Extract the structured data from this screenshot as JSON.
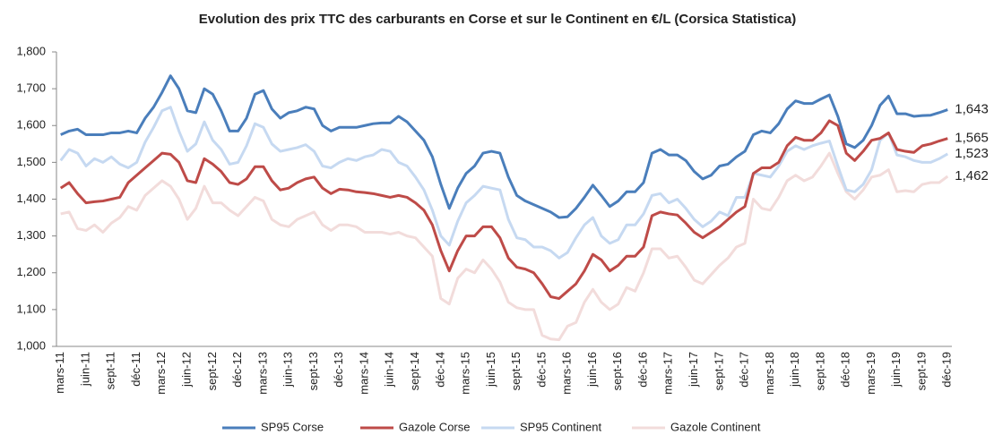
{
  "chart_data": {
    "type": "line",
    "title": "Evolution des prix TTC des carburants en Corse et sur le Continent en €/L (Corsica Statistica)",
    "categories": [
      "mars-11",
      null,
      null,
      "juin-11",
      null,
      null,
      "sept-11",
      null,
      null,
      "déc-11",
      null,
      null,
      "mars-12",
      null,
      null,
      "juin-12",
      null,
      null,
      "sept-12",
      null,
      null,
      "déc-12",
      null,
      null,
      "mars-13",
      null,
      null,
      "juin-13",
      null,
      null,
      "sept-13",
      null,
      null,
      "déc-13",
      null,
      null,
      "mars-14",
      null,
      null,
      "juin-14",
      null,
      null,
      "sept-14",
      null,
      null,
      "déc-14",
      null,
      null,
      "mars-15",
      null,
      null,
      "juin-15",
      null,
      null,
      "sept-15",
      null,
      null,
      "déc-15",
      null,
      null,
      "mars-16",
      null,
      null,
      "juin-16",
      null,
      null,
      "sept-16",
      null,
      null,
      "déc-16",
      null,
      null,
      "mars-17",
      null,
      null,
      "juin-17",
      null,
      null,
      "sept-17",
      null,
      null,
      "déc-17",
      null,
      null,
      "mars-18",
      null,
      null,
      "juin-18",
      null,
      null,
      "sept-18",
      null,
      null,
      "déc-18",
      null,
      null,
      "mars-19",
      null,
      null,
      "juin-19",
      null,
      null,
      "sept-19",
      null,
      null,
      "déc-19"
    ],
    "series": [
      {
        "name": "SP95 Corse",
        "color": "#4a7ebb",
        "values": [
          1.575,
          1.585,
          1.59,
          1.575,
          1.575,
          1.575,
          1.58,
          1.58,
          1.585,
          1.58,
          1.62,
          1.65,
          1.69,
          1.735,
          1.7,
          1.64,
          1.635,
          1.7,
          1.685,
          1.64,
          1.585,
          1.585,
          1.62,
          1.685,
          1.695,
          1.645,
          1.62,
          1.635,
          1.64,
          1.65,
          1.645,
          1.6,
          1.585,
          1.595,
          1.595,
          1.595,
          1.6,
          1.605,
          1.607,
          1.607,
          1.625,
          1.61,
          1.585,
          1.56,
          1.515,
          1.44,
          1.375,
          1.43,
          1.47,
          1.49,
          1.525,
          1.53,
          1.525,
          1.46,
          1.41,
          1.395,
          1.385,
          1.375,
          1.365,
          1.35,
          1.352,
          1.375,
          1.405,
          1.438,
          1.41,
          1.38,
          1.395,
          1.42,
          1.42,
          1.445,
          1.525,
          1.535,
          1.52,
          1.52,
          1.505,
          1.475,
          1.455,
          1.465,
          1.49,
          1.495,
          1.515,
          1.53,
          1.575,
          1.585,
          1.58,
          1.605,
          1.645,
          1.667,
          1.66,
          1.66,
          1.672,
          1.683,
          1.625,
          1.55,
          1.54,
          1.56,
          1.6,
          1.655,
          1.68,
          1.632,
          1.632,
          1.625,
          1.627,
          1.628,
          1.635,
          1.643
        ],
        "value_labels": {
          "105": "1,643"
        }
      },
      {
        "name": "Gazole Corse",
        "color": "#be4b48",
        "values": [
          1.43,
          1.445,
          1.415,
          1.39,
          1.393,
          1.395,
          1.4,
          1.405,
          1.445,
          1.465,
          1.485,
          1.505,
          1.525,
          1.522,
          1.5,
          1.45,
          1.445,
          1.51,
          1.495,
          1.475,
          1.445,
          1.44,
          1.455,
          1.488,
          1.488,
          1.45,
          1.425,
          1.43,
          1.445,
          1.455,
          1.46,
          1.43,
          1.415,
          1.427,
          1.425,
          1.42,
          1.418,
          1.415,
          1.41,
          1.405,
          1.41,
          1.405,
          1.39,
          1.37,
          1.33,
          1.26,
          1.205,
          1.26,
          1.3,
          1.3,
          1.325,
          1.325,
          1.295,
          1.24,
          1.215,
          1.21,
          1.2,
          1.17,
          1.135,
          1.13,
          1.15,
          1.17,
          1.205,
          1.25,
          1.235,
          1.205,
          1.22,
          1.245,
          1.245,
          1.27,
          1.355,
          1.365,
          1.36,
          1.357,
          1.335,
          1.31,
          1.295,
          1.31,
          1.325,
          1.345,
          1.365,
          1.38,
          1.47,
          1.485,
          1.485,
          1.5,
          1.545,
          1.568,
          1.56,
          1.56,
          1.58,
          1.613,
          1.6,
          1.525,
          1.505,
          1.53,
          1.56,
          1.565,
          1.58,
          1.535,
          1.53,
          1.527,
          1.545,
          1.55,
          1.558,
          1.565
        ],
        "value_labels": {
          "105": "1,565"
        }
      },
      {
        "name": "SP95 Continent",
        "color": "#c6d9f1",
        "values": [
          1.505,
          1.535,
          1.525,
          1.49,
          1.51,
          1.5,
          1.515,
          1.495,
          1.485,
          1.5,
          1.555,
          1.595,
          1.64,
          1.65,
          1.585,
          1.53,
          1.55,
          1.61,
          1.56,
          1.535,
          1.495,
          1.5,
          1.545,
          1.605,
          1.595,
          1.55,
          1.53,
          1.535,
          1.54,
          1.548,
          1.53,
          1.49,
          1.485,
          1.5,
          1.51,
          1.505,
          1.515,
          1.52,
          1.535,
          1.53,
          1.5,
          1.49,
          1.46,
          1.425,
          1.37,
          1.3,
          1.275,
          1.34,
          1.39,
          1.41,
          1.435,
          1.43,
          1.425,
          1.345,
          1.295,
          1.29,
          1.27,
          1.27,
          1.26,
          1.24,
          1.255,
          1.295,
          1.33,
          1.35,
          1.3,
          1.28,
          1.29,
          1.33,
          1.33,
          1.36,
          1.41,
          1.415,
          1.39,
          1.4,
          1.375,
          1.345,
          1.325,
          1.34,
          1.365,
          1.355,
          1.405,
          1.405,
          1.47,
          1.465,
          1.46,
          1.49,
          1.53,
          1.545,
          1.535,
          1.545,
          1.552,
          1.558,
          1.49,
          1.425,
          1.42,
          1.44,
          1.48,
          1.56,
          1.58,
          1.52,
          1.515,
          1.505,
          1.5,
          1.5,
          1.51,
          1.523
        ],
        "value_labels": {
          "105": "1,523"
        }
      },
      {
        "name": "Gazole Continent",
        "color": "#f2dcdb",
        "values": [
          1.36,
          1.365,
          1.32,
          1.315,
          1.33,
          1.31,
          1.335,
          1.35,
          1.38,
          1.37,
          1.41,
          1.43,
          1.45,
          1.435,
          1.4,
          1.345,
          1.375,
          1.435,
          1.39,
          1.39,
          1.37,
          1.355,
          1.38,
          1.405,
          1.395,
          1.345,
          1.33,
          1.325,
          1.345,
          1.355,
          1.365,
          1.33,
          1.315,
          1.33,
          1.33,
          1.325,
          1.31,
          1.31,
          1.31,
          1.305,
          1.31,
          1.3,
          1.295,
          1.27,
          1.245,
          1.13,
          1.115,
          1.185,
          1.21,
          1.2,
          1.235,
          1.21,
          1.175,
          1.12,
          1.105,
          1.1,
          1.1,
          1.03,
          1.02,
          1.018,
          1.055,
          1.065,
          1.12,
          1.155,
          1.12,
          1.1,
          1.115,
          1.16,
          1.15,
          1.2,
          1.265,
          1.265,
          1.24,
          1.245,
          1.215,
          1.18,
          1.17,
          1.195,
          1.22,
          1.24,
          1.27,
          1.28,
          1.4,
          1.375,
          1.37,
          1.405,
          1.45,
          1.465,
          1.45,
          1.46,
          1.49,
          1.525,
          1.47,
          1.42,
          1.4,
          1.425,
          1.46,
          1.465,
          1.48,
          1.42,
          1.423,
          1.42,
          1.44,
          1.445,
          1.445,
          1.462
        ],
        "value_labels": {
          "105": "1,462"
        }
      }
    ],
    "ylim": [
      1.0,
      1.8
    ],
    "yticks": [
      {
        "value": 1.0,
        "label": "1,000"
      },
      {
        "value": 1.1,
        "label": "1,100"
      },
      {
        "value": 1.2,
        "label": "1,200"
      },
      {
        "value": 1.3,
        "label": "1,300"
      },
      {
        "value": 1.4,
        "label": "1,400"
      },
      {
        "value": 1.5,
        "label": "1,500"
      },
      {
        "value": 1.6,
        "label": "1,600"
      },
      {
        "value": 1.7,
        "label": "1,700"
      },
      {
        "value": 1.8,
        "label": "1,800"
      }
    ],
    "grid": false,
    "legend": "bottom"
  }
}
